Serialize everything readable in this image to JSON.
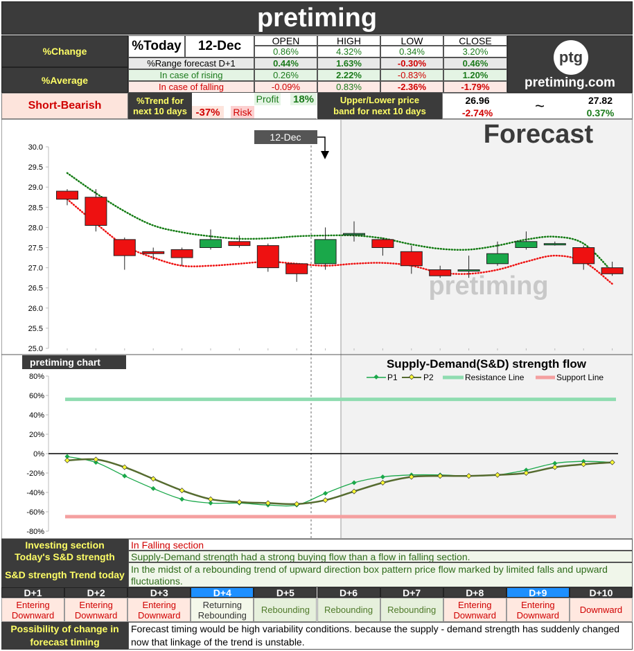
{
  "header": {
    "title": "pretiming"
  },
  "summary": {
    "pct_change_label": "%Change",
    "pct_average_label": "%Average",
    "today_label": "%Today",
    "date": "12-Dec",
    "range_forecast_label": "%Range forecast D+1",
    "rising_label": "In case of rising",
    "falling_label": "In case of falling",
    "columns": [
      "OPEN",
      "HIGH",
      "LOW",
      "CLOSE"
    ],
    "today_values": [
      "0.86%",
      "4.32%",
      "0.34%",
      "3.20%"
    ],
    "range_values": [
      "0.44%",
      "1.63%",
      "-0.30%",
      "0.46%"
    ],
    "rising_values": [
      "0.26%",
      "2.22%",
      "-0.83%",
      "1.20%"
    ],
    "falling_values": [
      "-0.09%",
      "0.83%",
      "-2.36%",
      "-1.79%"
    ]
  },
  "logo": {
    "mark": "ptg",
    "site": "pretiming.com"
  },
  "trend": {
    "status": "Short-Bearish",
    "trend_label": "%Trend for next 10 days",
    "risk_value": "-37%",
    "risk_label": "Risk",
    "profit_label": "Profit",
    "profit_value": "18%",
    "band_label": "Upper/Lower price band for next 10 days",
    "lower_price": "26.96",
    "lower_pct": "-2.74%",
    "tilde": "~",
    "upper_price": "27.82",
    "upper_pct": "0.37%"
  },
  "price_chart": {
    "forecast_label": "Forecast",
    "date_marker": "12-Dec",
    "watermark": "pretiming",
    "y_ticks": [
      "30.0",
      "29.5",
      "29.0",
      "28.5",
      "28.0",
      "27.5",
      "27.0",
      "26.5",
      "26.0",
      "25.5",
      "25.0"
    ]
  },
  "sd_chart": {
    "chart_label": "pretiming chart",
    "title": "Supply-Demand(S&D) strength flow",
    "legend": [
      "P1",
      "P2",
      "Resistance Line",
      "Support Line"
    ],
    "y_ticks": [
      "80%",
      "60%",
      "40%",
      "20%",
      "0%",
      "-20%",
      "-40%",
      "-60%",
      "-80%"
    ]
  },
  "info": {
    "investing_label": "Investing section",
    "investing_value": "In Falling section",
    "sd_today_label": "Today's S&D strength",
    "sd_today_value": "Supply-Demand strength had a strong buying flow than a flow in falling section.",
    "sd_trend_label": "S&D strength Trend today",
    "sd_trend_value": "In the midst of a rebounding trend of upward direction box pattern price flow marked by limited falls and upward fluctuations."
  },
  "days": [
    {
      "label": "D+1",
      "value": "Entering Downward"
    },
    {
      "label": "D+2",
      "value": "Entering Downward"
    },
    {
      "label": "D+3",
      "value": "Entering Downward"
    },
    {
      "label": "D+4",
      "value": "Returning Rebounding"
    },
    {
      "label": "D+5",
      "value": "Rebounding"
    },
    {
      "label": "D+6",
      "value": "Rebounding"
    },
    {
      "label": "D+7",
      "value": "Rebounding"
    },
    {
      "label": "D+8",
      "value": "Entering Downward"
    },
    {
      "label": "D+9",
      "value": "Entering Downward"
    },
    {
      "label": "D+10",
      "value": "Downward"
    }
  ],
  "footer": {
    "label": "Possibility of change in forecast timing",
    "text": "Forecast timing would be high variability conditions. because the supply - demand strength has suddenly changed now that linkage of the trend is unstable."
  },
  "colors": {
    "up_candle": "#1aa84a",
    "down_candle": "#ee1111",
    "upper_line": "#117a11",
    "lower_line": "#ee1111",
    "p1": "#1aa84a",
    "p2": "#556b2f",
    "resistance": "#8fdcb0",
    "support": "#f4a0a0"
  },
  "chart_data": [
    {
      "type": "candlestick",
      "title": "",
      "ylim": [
        25.0,
        30.0
      ],
      "candles": [
        {
          "o": 28.9,
          "h": 28.95,
          "l": 28.55,
          "c": 28.7
        },
        {
          "o": 28.75,
          "h": 28.95,
          "l": 27.9,
          "c": 28.05
        },
        {
          "o": 27.7,
          "h": 27.75,
          "l": 26.95,
          "c": 27.3
        },
        {
          "o": 27.4,
          "h": 27.5,
          "l": 27.2,
          "c": 27.35
        },
        {
          "o": 27.45,
          "h": 27.5,
          "l": 27.05,
          "c": 27.25
        },
        {
          "o": 27.5,
          "h": 27.95,
          "l": 27.45,
          "c": 27.7
        },
        {
          "o": 27.65,
          "h": 27.8,
          "l": 27.5,
          "c": 27.55
        },
        {
          "o": 27.55,
          "h": 27.6,
          "l": 26.9,
          "c": 27.0
        },
        {
          "o": 27.1,
          "h": 27.1,
          "l": 26.65,
          "c": 26.85
        },
        {
          "o": 27.1,
          "h": 28.0,
          "l": 26.95,
          "c": 27.7
        },
        {
          "o": 27.85,
          "h": 28.15,
          "l": 27.65,
          "c": 27.85
        },
        {
          "o": 27.7,
          "h": 27.75,
          "l": 27.3,
          "c": 27.5
        },
        {
          "o": 27.4,
          "h": 27.55,
          "l": 26.85,
          "c": 27.05
        },
        {
          "o": 26.95,
          "h": 27.05,
          "l": 26.75,
          "c": 26.8
        },
        {
          "o": 26.95,
          "h": 27.3,
          "l": 26.75,
          "c": 26.95
        },
        {
          "o": 27.1,
          "h": 27.65,
          "l": 27.05,
          "c": 27.35
        },
        {
          "o": 27.5,
          "h": 27.9,
          "l": 27.45,
          "c": 27.65
        },
        {
          "o": 27.6,
          "h": 27.65,
          "l": 27.55,
          "c": 27.6
        },
        {
          "o": 27.5,
          "h": 27.55,
          "l": 26.95,
          "c": 27.1
        },
        {
          "o": 27.0,
          "h": 27.15,
          "l": 26.8,
          "c": 26.85
        }
      ],
      "upper_band": [
        29.35,
        28.85,
        28.4,
        28.05,
        27.88,
        27.78,
        27.72,
        27.73,
        27.78,
        27.8,
        27.8,
        27.73,
        27.58,
        27.47,
        27.45,
        27.55,
        27.7,
        27.77,
        27.6,
        26.9
      ],
      "lower_band": [
        28.7,
        28.1,
        27.55,
        27.25,
        27.05,
        27.05,
        27.1,
        27.15,
        27.1,
        27.05,
        27.1,
        27.12,
        27.05,
        26.88,
        26.85,
        26.95,
        27.15,
        27.3,
        27.15,
        26.6
      ]
    },
    {
      "type": "line",
      "title": "Supply-Demand(S&D) strength flow",
      "ylim": [
        -80,
        80
      ],
      "series": [
        {
          "name": "P1",
          "values": [
            -3,
            -9,
            -23,
            -36,
            -47,
            -51,
            -51,
            -53,
            -53,
            -41,
            -30,
            -24,
            -22,
            -22,
            -23,
            -22,
            -17,
            -10,
            -8,
            -9
          ]
        },
        {
          "name": "P2",
          "values": [
            -7,
            -6,
            -14,
            -26,
            -38,
            -47,
            -50,
            -51,
            -52,
            -48,
            -39,
            -30,
            -24,
            -23,
            -23,
            -22,
            -20,
            -14,
            -11,
            -9
          ]
        },
        {
          "name": "Resistance Line",
          "values": [
            56,
            56
          ]
        },
        {
          "name": "Support Line",
          "values": [
            -65,
            -65
          ]
        }
      ]
    }
  ]
}
